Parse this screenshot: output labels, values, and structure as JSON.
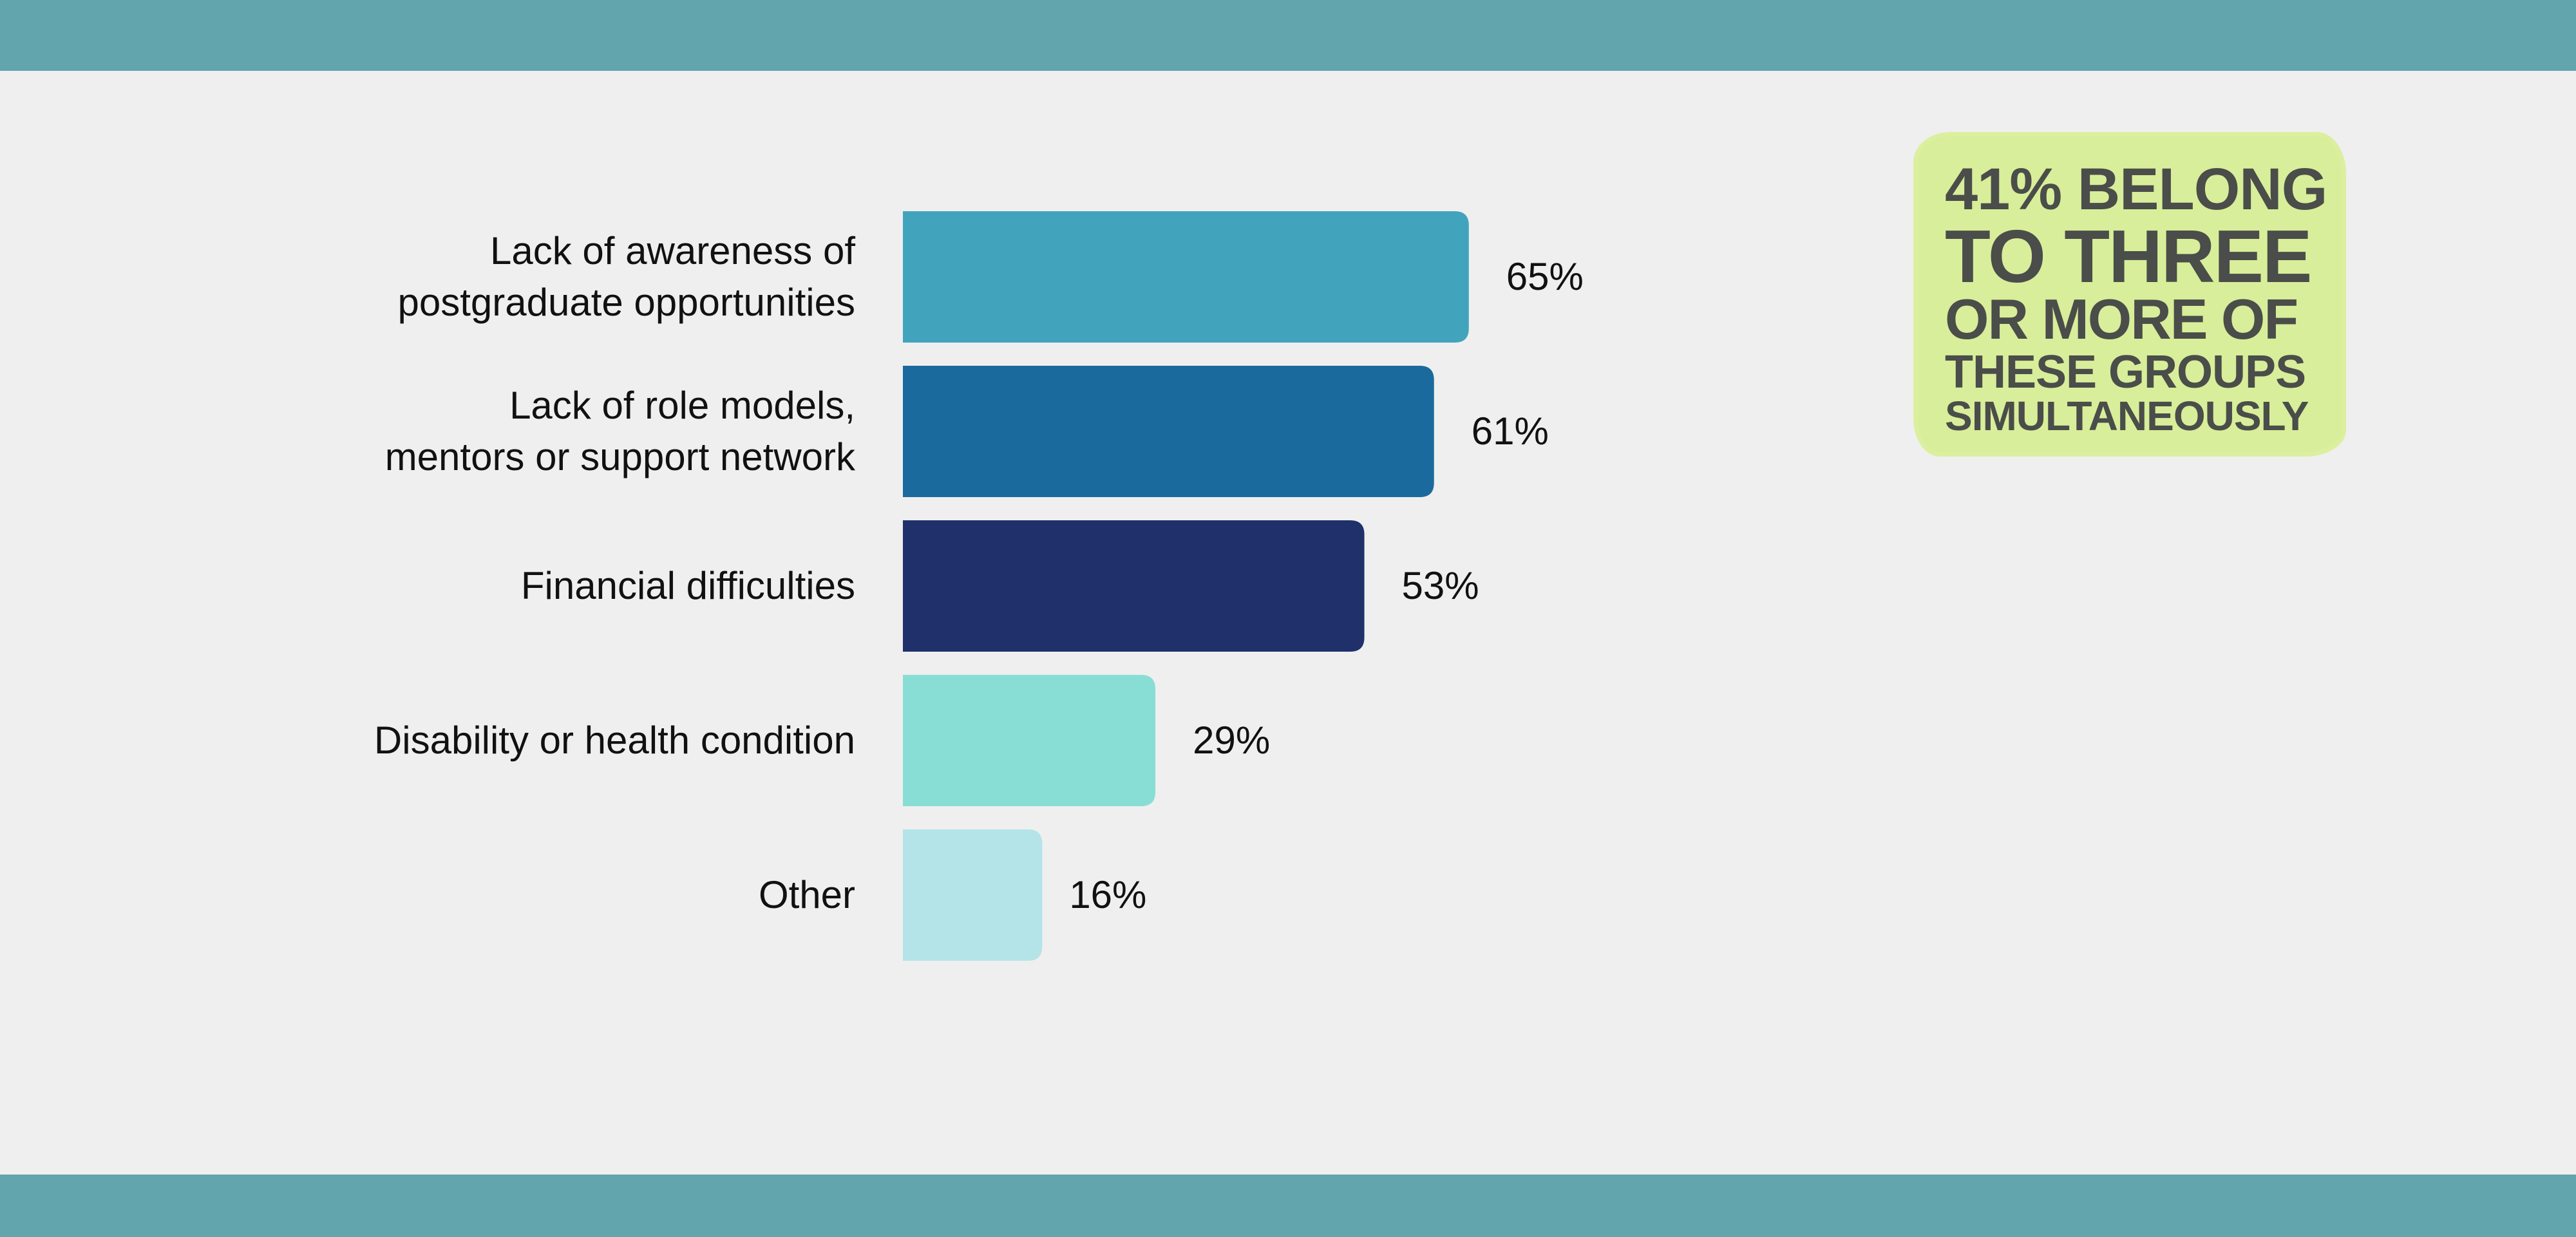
{
  "colors": {
    "background": "#efefef",
    "band": "#62a5ad",
    "callout_bg": "#d8ee9a",
    "callout_text": "#4a4d49"
  },
  "callout": {
    "lines": [
      "41% BELONG",
      "TO THREE",
      "OR MORE OF",
      "THESE GROUPS",
      "SIMULTANEOUSLY"
    ]
  },
  "chart_data": {
    "type": "bar",
    "orientation": "horizontal",
    "categories": [
      [
        "Lack of awareness of",
        "postgraduate opportunities"
      ],
      [
        "Lack of role models,",
        "mentors or support network"
      ],
      [
        "Financial difficulties"
      ],
      [
        "Disability or health condition"
      ],
      [
        "Other"
      ]
    ],
    "values": [
      65,
      61,
      53,
      29,
      16
    ],
    "value_labels": [
      "65%",
      "61%",
      "53%",
      "29%",
      "16%"
    ],
    "bar_colors": [
      "#42a4bc",
      "#1b6a9d",
      "#1f306b",
      "#88ded5",
      "#b4e4e8"
    ],
    "xlim": [
      0,
      100
    ],
    "grid": false,
    "legend": "none"
  }
}
